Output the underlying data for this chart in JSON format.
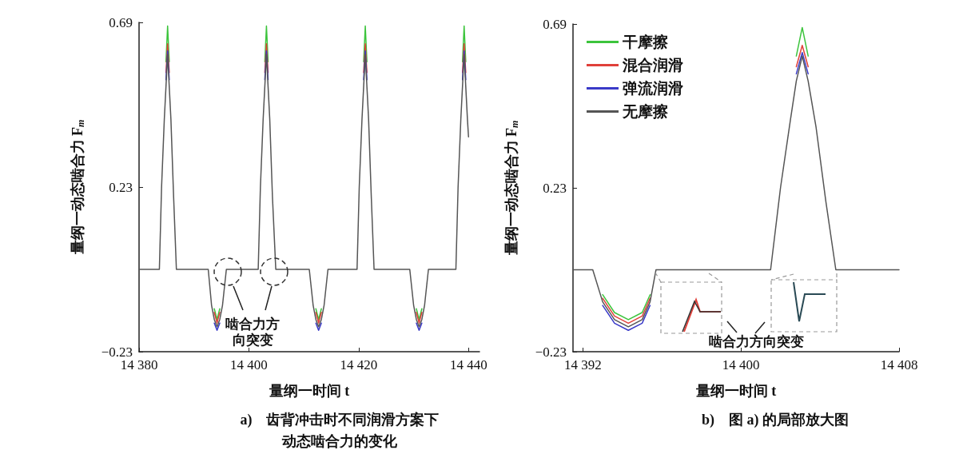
{
  "chart_data": [
    {
      "type": "line",
      "title": "a)　齿背冲击时不同润滑方案下动态啮合力的变化",
      "xlabel": "量纲一时间 t",
      "ylabel": "量纲一动态啮合力 F$_{m}$",
      "marker": "none",
      "line_style": "solid",
      "xlim": [
        14380,
        14442
      ],
      "xticks": [
        {
          "value": 14380,
          "label": "14 380"
        },
        {
          "value": 14400,
          "label": "14 400"
        },
        {
          "value": 14420,
          "label": "14 420"
        },
        {
          "value": 14440,
          "label": "14 440"
        }
      ],
      "ylim": [
        -0.23,
        0.69
      ],
      "yticks": [
        {
          "value": -0.23,
          "label": "−0.23"
        },
        {
          "value": 0.23,
          "label": "0.23"
        },
        {
          "value": 0.69,
          "label": "0.69"
        }
      ],
      "annotations": [
        "啮合力方向突变"
      ],
      "x": [
        14380,
        14383.7,
        14384.1,
        14384.6,
        14384.9,
        14385.2,
        14385.5,
        14385.8,
        14386.3,
        14386.8,
        14392.6,
        14393.2,
        14393.7,
        14394.2,
        14394.7,
        14395.2,
        14395.9,
        14401.7,
        14402.1,
        14402.6,
        14402.9,
        14403.2,
        14403.5,
        14403.8,
        14404.3,
        14404.9,
        14411.0,
        14411.7,
        14412.2,
        14412.7,
        14413.2,
        14413.7,
        14414.4,
        14419.7,
        14420.1,
        14420.6,
        14420.9,
        14421.2,
        14421.5,
        14421.8,
        14422.3,
        14422.8,
        14429.3,
        14430.0,
        14430.5,
        14431.0,
        14431.5,
        14432.0,
        14432.7,
        14437.7,
        14438.1,
        14438.6,
        14438.9,
        14439.2,
        14439.5,
        14439.8,
        14440
      ],
      "series": [
        {
          "color": "#3cc43c",
          "values": [
            null,
            null,
            null,
            null,
            0.58,
            0.68,
            0.58,
            null,
            null,
            null,
            null,
            null,
            -0.11,
            -0.14,
            -0.11,
            null,
            null,
            null,
            null,
            null,
            0.58,
            0.68,
            0.58,
            null,
            null,
            null,
            null,
            null,
            -0.11,
            -0.14,
            -0.11,
            null,
            null,
            null,
            null,
            null,
            0.58,
            0.68,
            0.58,
            null,
            null,
            null,
            null,
            null,
            -0.11,
            -0.14,
            -0.11,
            null,
            null,
            null,
            null,
            null,
            0.58,
            0.68,
            0.58,
            null,
            null
          ]
        },
        {
          "color": "#e0403a",
          "values": [
            null,
            null,
            null,
            null,
            0.55,
            0.63,
            0.55,
            null,
            null,
            null,
            null,
            null,
            -0.12,
            -0.15,
            -0.12,
            null,
            null,
            null,
            null,
            null,
            0.55,
            0.63,
            0.55,
            null,
            null,
            null,
            null,
            null,
            -0.12,
            -0.15,
            -0.12,
            null,
            null,
            null,
            null,
            null,
            0.55,
            0.63,
            0.55,
            null,
            null,
            null,
            null,
            null,
            -0.12,
            -0.15,
            -0.12,
            null,
            null,
            null,
            null,
            null,
            0.55,
            0.63,
            0.55,
            null,
            null
          ]
        },
        {
          "color": "#3a3ac8",
          "values": [
            null,
            null,
            null,
            null,
            0.53,
            0.61,
            0.53,
            null,
            null,
            null,
            null,
            null,
            -0.15,
            -0.17,
            -0.15,
            null,
            null,
            null,
            null,
            null,
            0.53,
            0.61,
            0.53,
            null,
            null,
            null,
            null,
            null,
            -0.15,
            -0.17,
            -0.15,
            null,
            null,
            null,
            null,
            null,
            0.53,
            0.61,
            0.53,
            null,
            null,
            null,
            null,
            null,
            -0.15,
            -0.17,
            -0.15,
            null,
            null,
            null,
            null,
            null,
            0.53,
            0.61,
            0.53,
            null,
            null
          ]
        },
        {
          "color": "#555555",
          "values": [
            0,
            0,
            0.23,
            0.42,
            0.51,
            0.6,
            0.51,
            0.42,
            0.2,
            0,
            0,
            -0.1,
            -0.14,
            -0.16,
            -0.14,
            -0.1,
            0,
            0,
            0.23,
            0.42,
            0.51,
            0.6,
            0.51,
            0.42,
            0.2,
            0,
            0,
            -0.1,
            -0.14,
            -0.16,
            -0.14,
            -0.1,
            0,
            0,
            0.23,
            0.42,
            0.51,
            0.6,
            0.51,
            0.42,
            0.2,
            0,
            0,
            -0.1,
            -0.14,
            -0.16,
            -0.14,
            -0.1,
            0,
            0,
            0.23,
            0.42,
            0.51,
            0.6,
            0.51,
            0.42,
            0.37
          ]
        }
      ]
    },
    {
      "type": "line",
      "title": "b)　图 a) 的局部放大图",
      "xlabel": "量纲一时间 t",
      "ylabel": "量纲一动态啮合力 F$_{m}$",
      "marker": "none",
      "line_style": "solid",
      "legend": "top left",
      "xlim": [
        14391.5,
        14408
      ],
      "xticks": [
        {
          "value": 14392,
          "label": "14 392"
        },
        {
          "value": 14400,
          "label": "14 400"
        },
        {
          "value": 14408,
          "label": "14 408"
        }
      ],
      "ylim": [
        -0.23,
        0.69
      ],
      "yticks": [
        {
          "value": -0.23,
          "label": "−0.23"
        },
        {
          "value": 0.23,
          "label": "0.23"
        },
        {
          "value": 0.69,
          "label": "0.69"
        }
      ],
      "annotations": [
        "啮合力方向突变"
      ],
      "x": [
        14391.5,
        14392.5,
        14393.0,
        14393.6,
        14394.3,
        14395.0,
        14395.4,
        14395.7,
        14401.5,
        14402,
        14402.5,
        14402.8,
        14403.1,
        14403.4,
        14403.8,
        14404.3,
        14404.8,
        14408
      ],
      "series": [
        {
          "name": "干摩擦",
          "color": "#3cc43c",
          "values": [
            null,
            null,
            -0.07,
            -0.12,
            -0.14,
            -0.12,
            -0.07,
            null,
            null,
            null,
            null,
            0.6,
            0.68,
            0.6,
            null,
            null,
            null,
            null
          ]
        },
        {
          "name": "混合润滑",
          "color": "#e0403a",
          "values": [
            null,
            null,
            -0.08,
            -0.13,
            -0.15,
            -0.13,
            -0.08,
            null,
            null,
            null,
            null,
            0.57,
            0.63,
            0.57,
            null,
            null,
            null,
            null
          ]
        },
        {
          "name": "弹流润滑",
          "color": "#3a3ac8",
          "values": [
            null,
            null,
            -0.1,
            -0.15,
            -0.17,
            -0.15,
            -0.1,
            null,
            null,
            null,
            null,
            0.55,
            0.61,
            0.55,
            null,
            null,
            null,
            null
          ]
        },
        {
          "name": "无摩擦",
          "color": "#555555",
          "values": [
            0,
            0,
            -0.09,
            -0.14,
            -0.16,
            -0.14,
            -0.09,
            0,
            0,
            0.23,
            0.42,
            0.53,
            0.6,
            0.53,
            0.4,
            0.19,
            0,
            0
          ]
        }
      ]
    }
  ]
}
